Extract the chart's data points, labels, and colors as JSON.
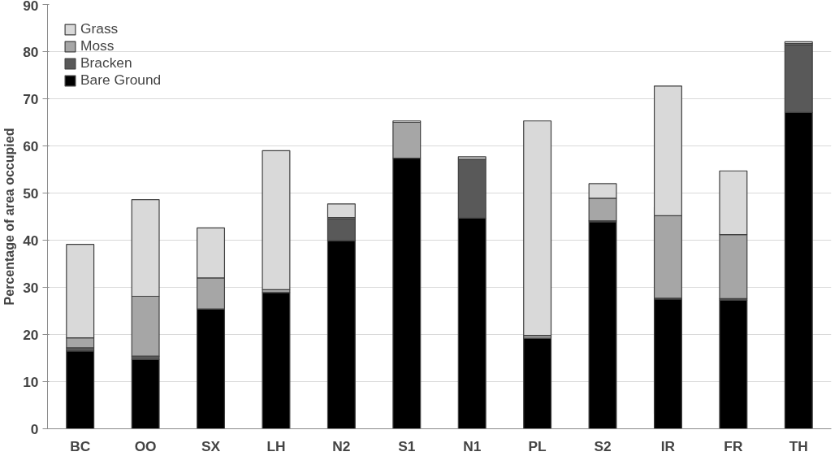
{
  "chart_data": {
    "type": "bar",
    "stacked": true,
    "ylabel": "Percentage of area occupied",
    "categories": [
      "BC",
      "OO",
      "SX",
      "LH",
      "N2",
      "S1",
      "N1",
      "PL",
      "S2",
      "IR",
      "FR",
      "TH"
    ],
    "series": [
      {
        "name": "Bare Ground",
        "color": "#000000",
        "values": [
          16.5,
          14.7,
          25.4,
          28.9,
          39.9,
          57.4,
          44.7,
          19.2,
          43.9,
          27.5,
          27.3,
          67.1
        ]
      },
      {
        "name": "Bracken",
        "color": "#595959",
        "values": [
          0.7,
          0.7,
          0,
          0,
          4.6,
          0,
          12.5,
          0,
          0.2,
          0.2,
          0.3,
          14.3
        ]
      },
      {
        "name": "Moss",
        "color": "#a6a6a6",
        "values": [
          2.1,
          12.7,
          6.6,
          0.6,
          0.3,
          7.6,
          0,
          0.6,
          4.8,
          17.5,
          13.6,
          0.3
        ]
      },
      {
        "name": "Grass",
        "color": "#d9d9d9",
        "values": [
          19.8,
          20.5,
          10.6,
          29.5,
          2.9,
          0.3,
          0.5,
          45.5,
          3.1,
          27.5,
          13.5,
          0.4
        ]
      }
    ],
    "ylim": [
      0,
      90
    ],
    "yticks": [
      0,
      10,
      20,
      30,
      40,
      50,
      60,
      70,
      80,
      90
    ],
    "grid": "y",
    "legend": "top left"
  }
}
